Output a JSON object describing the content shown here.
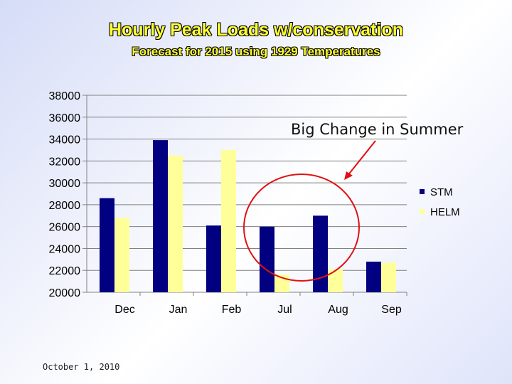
{
  "slide": {
    "title": "Hourly Peak Loads w/conservation",
    "subtitle": "Forecast for 2015 using 1929 Temperatures",
    "footer_date": "October 1, 2010"
  },
  "chart_data": {
    "type": "bar",
    "title": "Hourly Peak Loads w/conservation",
    "subtitle": "Forecast for 2015 using 1929 Temperatures",
    "categories": [
      "Dec",
      "Jan",
      "Feb",
      "Jul",
      "Aug",
      "Sep"
    ],
    "series": [
      {
        "name": "STM",
        "values": [
          28600,
          33900,
          26100,
          26000,
          27000,
          22800
        ],
        "color": "#000080"
      },
      {
        "name": "HELM",
        "values": [
          26800,
          32500,
          33000,
          21600,
          22100,
          22700
        ],
        "color": "#ffff99"
      }
    ],
    "ylim": [
      20000,
      38000
    ],
    "yticks": [
      "38000",
      "36000",
      "34000",
      "32000",
      "30000",
      "28000",
      "26000",
      "24000",
      "22000",
      "20000"
    ],
    "grid": true,
    "legend": "right",
    "annotation": {
      "text": "Big Change in Summer",
      "highlight": [
        "Jul",
        "Aug"
      ],
      "color": "#e01010"
    }
  }
}
